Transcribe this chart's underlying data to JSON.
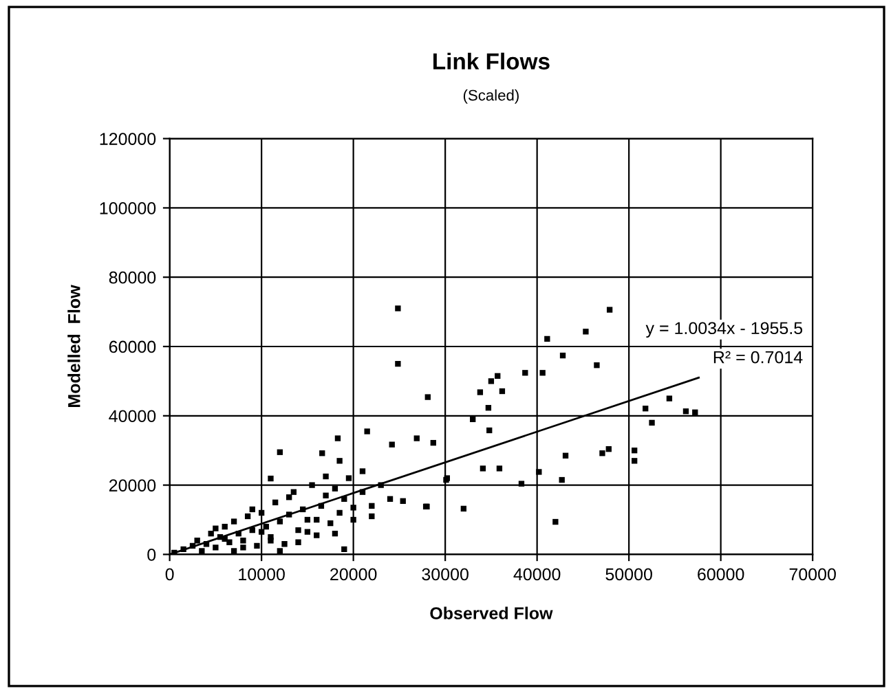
{
  "chart_data": {
    "type": "scatter",
    "title": "Link Flows",
    "subtitle": "(Scaled)",
    "xlabel": "Observed Flow",
    "ylabel": "Modelled  Flow",
    "xlim": [
      0,
      70000
    ],
    "ylim": [
      0,
      120000
    ],
    "xticks": [
      0,
      10000,
      20000,
      30000,
      40000,
      50000,
      60000,
      70000
    ],
    "yticks": [
      0,
      20000,
      40000,
      60000,
      80000,
      100000,
      120000
    ],
    "grid": true,
    "annotations": [
      "y = 1.0034x - 1955.5",
      "R² = 0.7014"
    ],
    "series": [
      {
        "color": "#000000",
        "marker": "square",
        "x": [
          24850,
          24850,
          28100,
          35000,
          33000,
          21500,
          18300,
          12000,
          26900,
          24200,
          18500,
          30200,
          32000,
          27900,
          25400,
          16600,
          11000,
          47900,
          41100,
          45300,
          42800,
          46500,
          35700,
          38700,
          40600,
          36200,
          33800,
          34700,
          34800,
          54400,
          51800,
          52500,
          56200,
          57200,
          47800,
          47100,
          50600,
          50600,
          43100,
          40200,
          42700,
          38300,
          35900,
          34100,
          30100,
          42000,
          28700,
          28000,
          500,
          1500,
          2500,
          3000,
          4000,
          4500,
          5000,
          5500,
          6000,
          6500,
          7000,
          7500,
          8000,
          8500,
          9000,
          9500,
          10000,
          10500,
          11000,
          11500,
          12000,
          12500,
          13000,
          13500,
          14000,
          14500,
          15000,
          15500,
          16000,
          16500,
          17000,
          17500,
          18000,
          18500,
          19000,
          19500,
          20000,
          21000,
          22000,
          23000,
          24000,
          3500,
          6000,
          8000,
          10000,
          12000,
          14000,
          16000,
          18000,
          20000,
          22000,
          9000,
          13000,
          17000,
          21000,
          5000,
          11000,
          15000,
          19000,
          7000
        ],
        "values": [
          71000,
          55000,
          45400,
          50000,
          39000,
          35500,
          33500,
          29500,
          33500,
          31700,
          27000,
          22000,
          13200,
          13800,
          15400,
          29200,
          21900,
          70600,
          62200,
          64300,
          57400,
          54600,
          51500,
          52400,
          52400,
          47100,
          46800,
          42300,
          35800,
          45000,
          42100,
          38000,
          41300,
          41000,
          30400,
          29200,
          30000,
          27000,
          28500,
          23800,
          21500,
          20400,
          24800,
          24800,
          21500,
          9400,
          32200,
          13800,
          500,
          1500,
          2500,
          4000,
          3000,
          6000,
          2000,
          5000,
          8000,
          3500,
          9500,
          6000,
          4000,
          11000,
          7000,
          2500,
          12000,
          8000,
          5000,
          15000,
          9500,
          3000,
          11500,
          18000,
          7000,
          13000,
          10000,
          20000,
          5500,
          14000,
          17000,
          9000,
          19000,
          12000,
          16000,
          22000,
          10000,
          18000,
          14000,
          20000,
          16000,
          1000,
          4500,
          2000,
          6500,
          1000,
          3500,
          10000,
          6000,
          13500,
          11000,
          13000,
          16500,
          22500,
          24000,
          7500,
          4000,
          6500,
          1500,
          1000
        ]
      },
      {
        "type": "line",
        "color": "#000000",
        "x": [
          0,
          57600
        ],
        "values": [
          0,
          51000
        ]
      }
    ]
  }
}
